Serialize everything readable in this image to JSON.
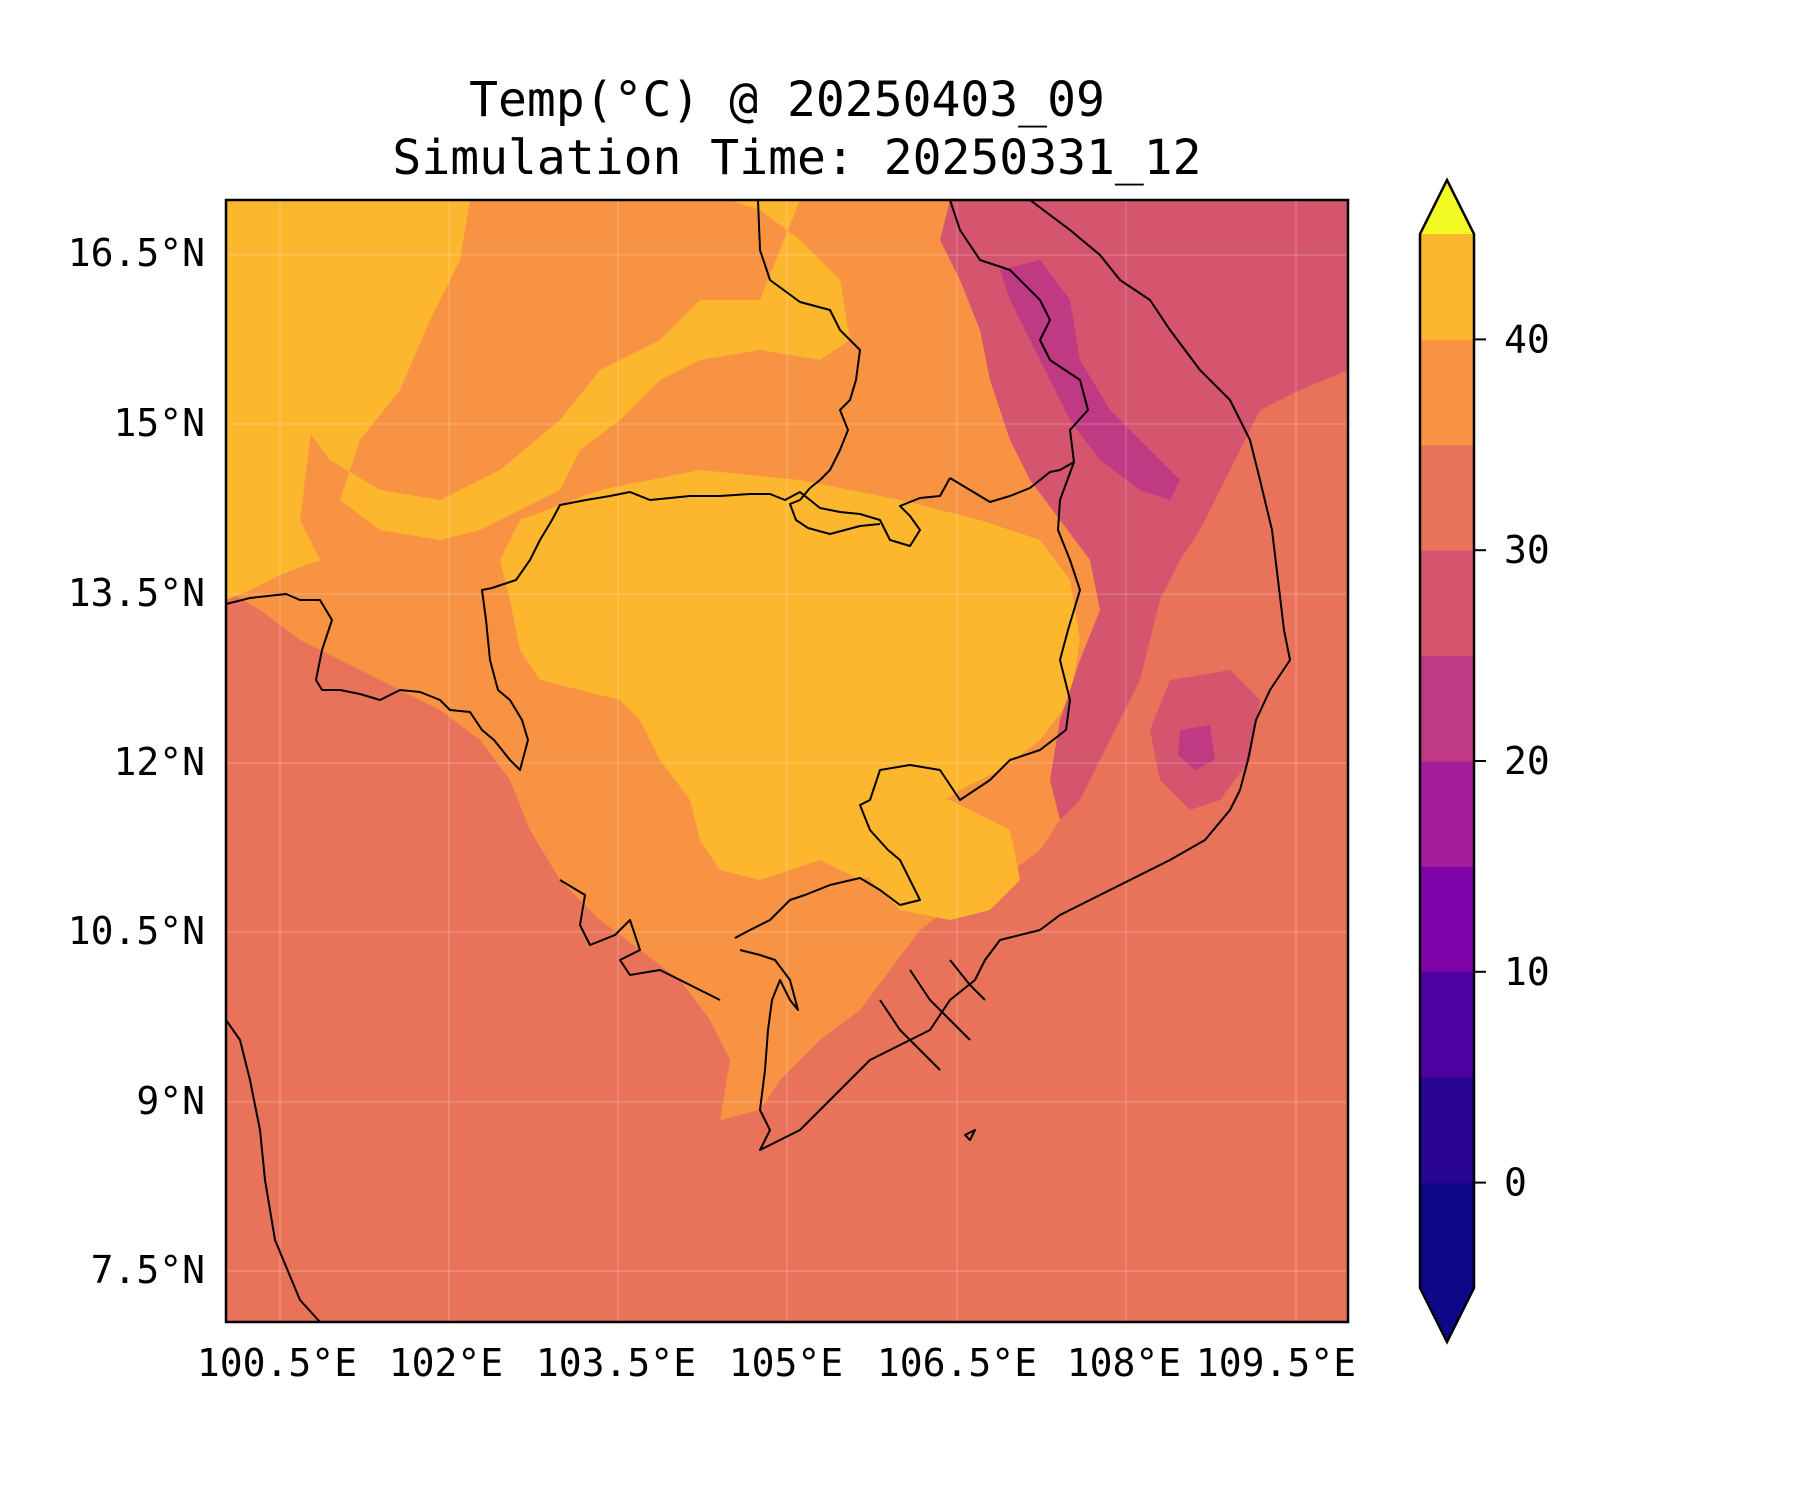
{
  "title": {
    "line1": "Temp(°C) @ 20250403_09",
    "line2": "Simulation Time: 20250331_12"
  },
  "map": {
    "x_ticks": [
      "100.5°E",
      "102°E",
      "103.5°E",
      "105°E",
      "106.5°E",
      "108°E",
      "109.5°E"
    ],
    "y_ticks": [
      "16.5°N",
      "15°N",
      "13.5°N",
      "12°N",
      "10.5°N",
      "9°N",
      "7.5°N"
    ],
    "lon_values": [
      100.5,
      102,
      103.5,
      105,
      106.5,
      108,
      109.5
    ],
    "lat_values": [
      16.5,
      15,
      13.5,
      12,
      10.5,
      9,
      7.5
    ],
    "lon_range": [
      100.05,
      110.0
    ],
    "lat_range": [
      7.05,
      17.0
    ],
    "grid": true
  },
  "colorbar": {
    "ticks": [
      "40",
      "30",
      "20",
      "10",
      "0"
    ],
    "tick_values": [
      40,
      30,
      20,
      10,
      0
    ],
    "levels": [
      -5,
      0,
      5,
      10,
      15,
      20,
      25,
      30,
      35,
      40,
      45
    ],
    "colors": [
      "#0d0887",
      "#2a0594",
      "#4c02a1",
      "#7e03a8",
      "#a41e9a",
      "#c03a83",
      "#d5546e",
      "#e8735a",
      "#f79342",
      "#fdb72f",
      "#f0ea1f"
    ],
    "extend": "both"
  },
  "colors": {
    "band_20_25": "#d5546e",
    "band_25_30": "#e8735a",
    "band_30_35": "#f79342",
    "band_35_40": "#fdb72f",
    "band_15_20": "#c03a83"
  }
}
